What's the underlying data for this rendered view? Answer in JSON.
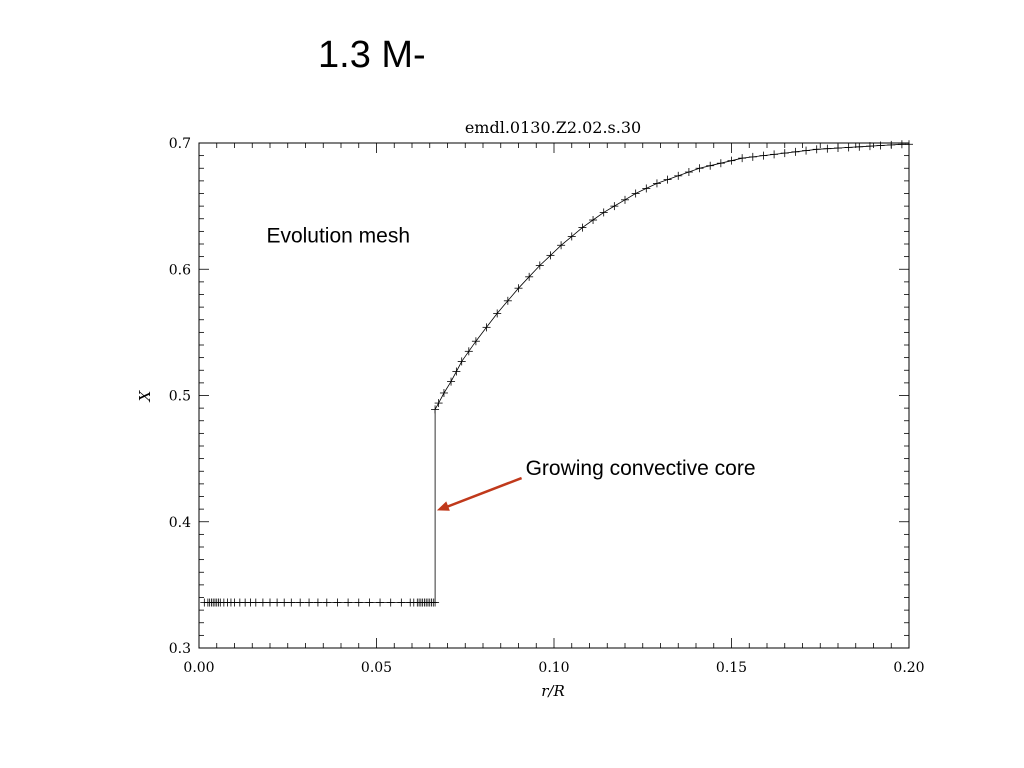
{
  "slide": {
    "title": "1.3 M-"
  },
  "chart_data": {
    "type": "line",
    "title": "emdl.0130.Z2.02.s.30",
    "xlabel": "r/R",
    "ylabel": "X",
    "xlim": [
      0.0,
      0.2
    ],
    "ylim": [
      0.3,
      0.7
    ],
    "xticks": [
      "0.00",
      "0.05",
      "0.10",
      "0.15",
      "0.20"
    ],
    "yticks": [
      "0.3",
      "0.4",
      "0.5",
      "0.6",
      "0.7"
    ],
    "grid": false,
    "marker": "plus",
    "line_color": "#000000",
    "series": [
      {
        "x": [
          0.0015,
          0.0025,
          0.003,
          0.0035,
          0.004,
          0.0045,
          0.005,
          0.0055,
          0.006,
          0.007,
          0.008,
          0.009,
          0.01,
          0.0115,
          0.013,
          0.0145,
          0.016,
          0.018,
          0.02,
          0.022,
          0.024,
          0.026,
          0.0285,
          0.031,
          0.0335,
          0.036,
          0.039,
          0.042,
          0.045,
          0.048,
          0.051,
          0.054,
          0.057,
          0.0595,
          0.0605,
          0.0615,
          0.062,
          0.0625,
          0.063,
          0.0635,
          0.064,
          0.0645,
          0.065,
          0.0655,
          0.066,
          0.0665,
          0.0665,
          0.0675,
          0.069,
          0.071,
          0.0725,
          0.074,
          0.076,
          0.078,
          0.081,
          0.084,
          0.087,
          0.09,
          0.093,
          0.096,
          0.099,
          0.102,
          0.105,
          0.108,
          0.111,
          0.114,
          0.117,
          0.12,
          0.123,
          0.126,
          0.129,
          0.132,
          0.135,
          0.138,
          0.141,
          0.144,
          0.147,
          0.15,
          0.153,
          0.156,
          0.159,
          0.162,
          0.165,
          0.168,
          0.171,
          0.174,
          0.177,
          0.18,
          0.183,
          0.186,
          0.189,
          0.192,
          0.195,
          0.198,
          0.2
        ],
        "y": [
          0.336,
          0.336,
          0.336,
          0.336,
          0.336,
          0.336,
          0.336,
          0.336,
          0.336,
          0.336,
          0.336,
          0.336,
          0.336,
          0.336,
          0.336,
          0.336,
          0.336,
          0.336,
          0.336,
          0.336,
          0.336,
          0.336,
          0.336,
          0.336,
          0.336,
          0.336,
          0.336,
          0.336,
          0.336,
          0.336,
          0.336,
          0.336,
          0.336,
          0.336,
          0.336,
          0.336,
          0.336,
          0.336,
          0.336,
          0.336,
          0.336,
          0.336,
          0.336,
          0.336,
          0.336,
          0.336,
          0.489,
          0.494,
          0.502,
          0.511,
          0.519,
          0.527,
          0.535,
          0.543,
          0.554,
          0.565,
          0.575,
          0.585,
          0.594,
          0.603,
          0.611,
          0.619,
          0.626,
          0.633,
          0.639,
          0.645,
          0.65,
          0.655,
          0.66,
          0.664,
          0.668,
          0.671,
          0.674,
          0.677,
          0.68,
          0.682,
          0.684,
          0.686,
          0.688,
          0.689,
          0.69,
          0.691,
          0.692,
          0.693,
          0.694,
          0.695,
          0.6955,
          0.696,
          0.6965,
          0.697,
          0.6975,
          0.698,
          0.6985,
          0.699,
          0.699
        ]
      }
    ],
    "annotations": [
      {
        "text": "Evolution mesh",
        "x": 0.019,
        "y": 0.621
      },
      {
        "text": "Growing convective core",
        "x": 0.092,
        "y": 0.437,
        "arrow_to": [
          0.067,
          0.409
        ],
        "arrow_color": "#c0391b"
      }
    ]
  }
}
